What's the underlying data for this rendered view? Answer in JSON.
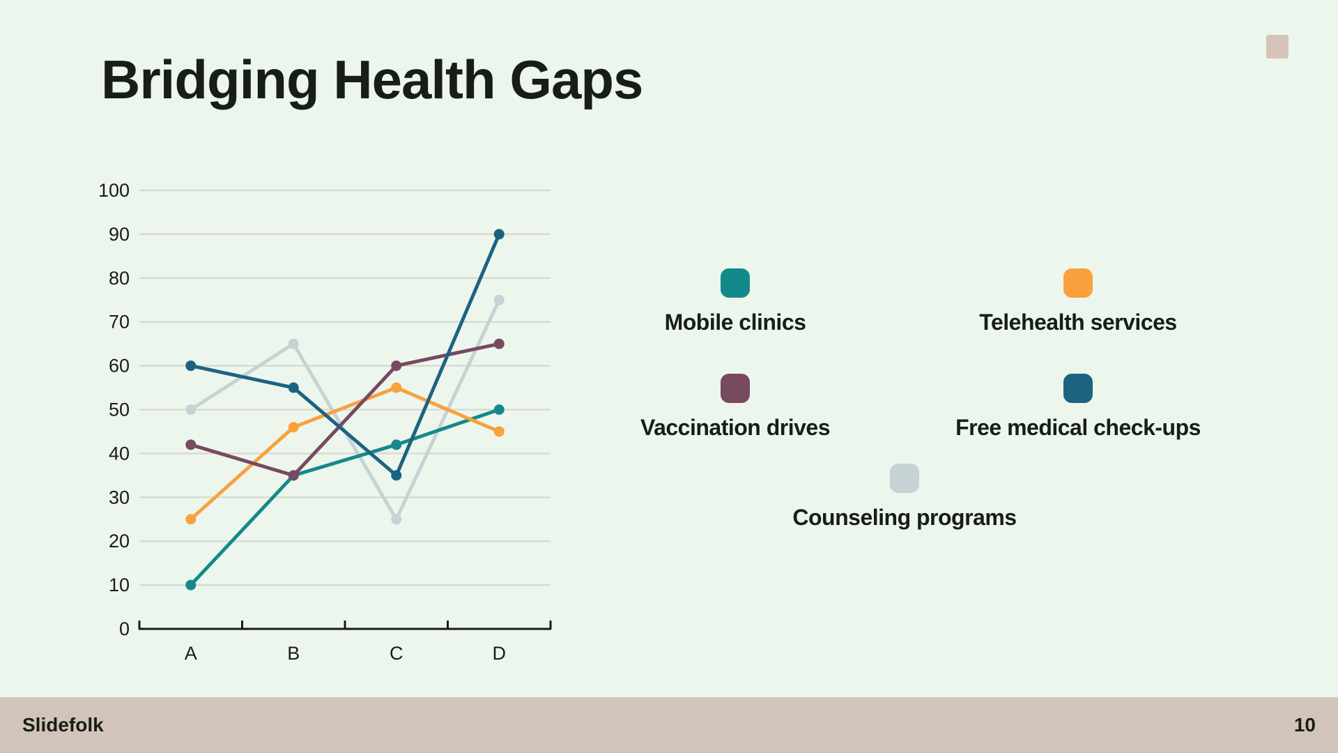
{
  "slide": {
    "title": "Bridging Health Gaps",
    "footer": {
      "brand": "Slidefolk",
      "page_number": "10"
    },
    "colors": {
      "background": "#ECF6ED",
      "text": "#171D18",
      "footer_bg": "#D2C4B8",
      "accent_square": "#D7C4B8",
      "gridline": "#D6D5CB",
      "axis": "#1A1A1A"
    }
  },
  "chart_data": {
    "type": "line",
    "title": "",
    "xlabel": "",
    "ylabel": "",
    "categories": [
      "A",
      "B",
      "C",
      "D"
    ],
    "series": [
      {
        "name": "Mobile clinics",
        "color": "#14898B",
        "values": [
          10,
          35,
          42,
          50
        ]
      },
      {
        "name": "Telehealth services",
        "color": "#F9A13D",
        "values": [
          25,
          46,
          55,
          45
        ]
      },
      {
        "name": "Vaccination drives",
        "color": "#774A60",
        "values": [
          42,
          35,
          60,
          65
        ]
      },
      {
        "name": "Free medical check-ups",
        "color": "#1D6381",
        "values": [
          60,
          55,
          35,
          90
        ]
      },
      {
        "name": "Counseling programs",
        "color": "#C7D2D4",
        "values": [
          50,
          65,
          25,
          75
        ]
      }
    ],
    "draw_order": [
      4,
      0,
      1,
      2,
      3
    ],
    "ylim": [
      0,
      100
    ],
    "ytick_step": 10,
    "yticks": [
      0,
      10,
      20,
      30,
      40,
      50,
      60,
      70,
      80,
      90,
      100
    ],
    "grid": true,
    "marker": "circle",
    "legend_position": "right-of-chart"
  }
}
